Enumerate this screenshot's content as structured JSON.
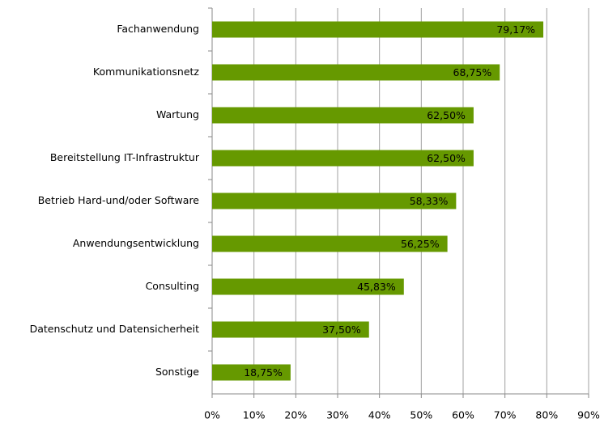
{
  "chart_data": {
    "type": "barh",
    "categories": [
      "Fachanwendung",
      "Kommunikationsnetz",
      "Wartung",
      "Bereitstellung IT-Infrastruktur",
      "Betrieb Hard-und/oder Software",
      "Anwendungsentwicklung",
      "Consulting",
      "Datenschutz und Datensicherheit",
      "Sonstige"
    ],
    "values": [
      79.17,
      68.75,
      62.5,
      62.5,
      58.33,
      56.25,
      45.83,
      37.5,
      18.75
    ],
    "value_labels": [
      "79,17%",
      "68,75%",
      "62,50%",
      "62,50%",
      "58,33%",
      "56,25%",
      "45,83%",
      "37,50%",
      "18,75%"
    ],
    "color": "#669900",
    "xlim": [
      0,
      90
    ],
    "xticks": [
      {
        "value": 0,
        "label": "0%"
      },
      {
        "value": 10,
        "label": "10%"
      },
      {
        "value": 20,
        "label": "20%"
      },
      {
        "value": 30,
        "label": "30%"
      },
      {
        "value": 40,
        "label": "40%"
      },
      {
        "value": 50,
        "label": "50%"
      },
      {
        "value": 60,
        "label": "60%"
      },
      {
        "value": 70,
        "label": "70%"
      },
      {
        "value": 80,
        "label": "80%"
      },
      {
        "value": 90,
        "label": "90%"
      }
    ],
    "grid": true
  }
}
